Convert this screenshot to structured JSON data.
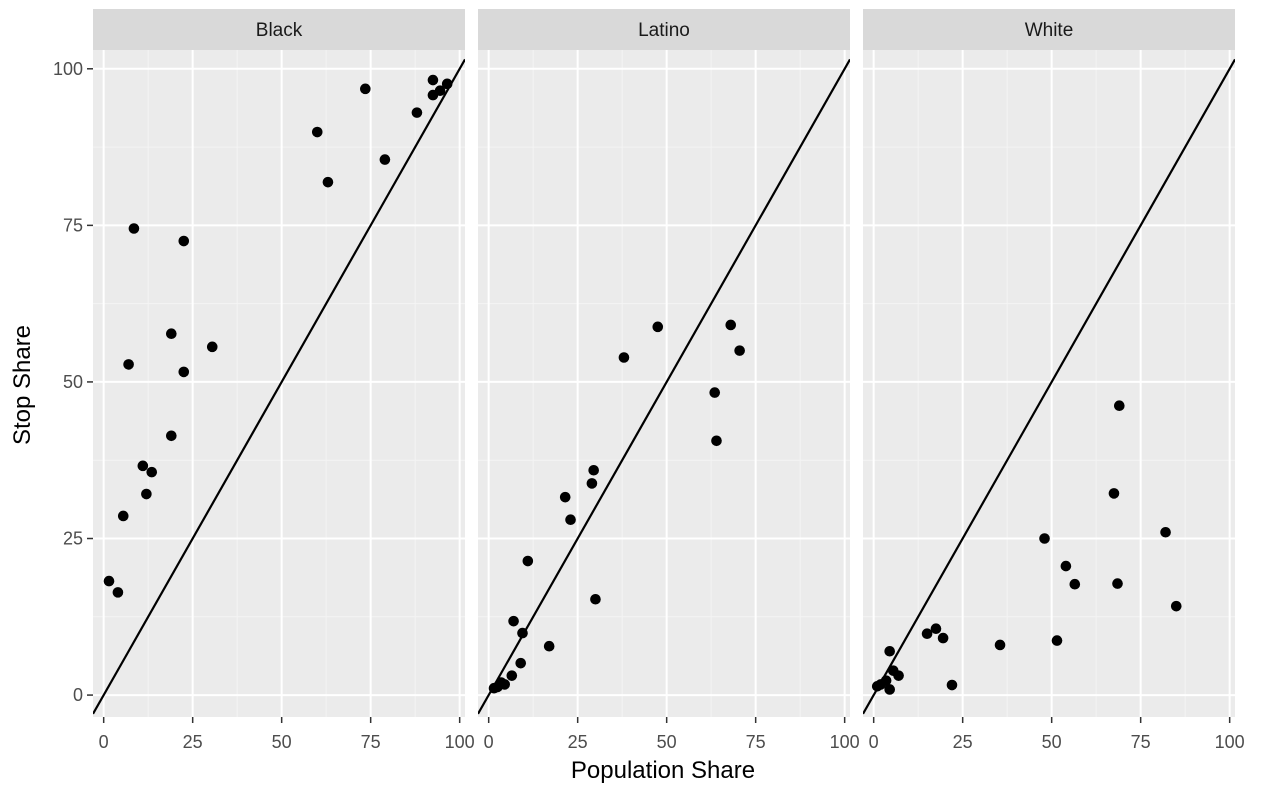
{
  "chart_data": {
    "type": "scatter",
    "xlabel": "Population Share",
    "ylabel": "Stop Share",
    "xlim": [
      -3,
      101.5
    ],
    "ylim": [
      -3.5,
      103
    ],
    "x_ticks": [
      0,
      25,
      50,
      75,
      100
    ],
    "y_ticks": [
      0,
      25,
      50,
      75,
      100
    ],
    "reference_line": {
      "slope": 1,
      "intercept": 0
    },
    "grid": true,
    "panels": [
      {
        "label": "Black",
        "points": [
          {
            "x": 1.5,
            "y": 18.2
          },
          {
            "x": 4,
            "y": 16.4
          },
          {
            "x": 5.5,
            "y": 28.6
          },
          {
            "x": 7,
            "y": 52.8
          },
          {
            "x": 8.5,
            "y": 74.5
          },
          {
            "x": 11,
            "y": 36.6
          },
          {
            "x": 12,
            "y": 32.1
          },
          {
            "x": 13.5,
            "y": 35.6
          },
          {
            "x": 19,
            "y": 57.7
          },
          {
            "x": 19,
            "y": 41.4
          },
          {
            "x": 22.5,
            "y": 72.5
          },
          {
            "x": 22.5,
            "y": 51.6
          },
          {
            "x": 30.5,
            "y": 55.6
          },
          {
            "x": 60,
            "y": 89.9
          },
          {
            "x": 63,
            "y": 81.9
          },
          {
            "x": 73.5,
            "y": 96.8
          },
          {
            "x": 79,
            "y": 85.5
          },
          {
            "x": 88,
            "y": 93
          },
          {
            "x": 92.5,
            "y": 98.2
          },
          {
            "x": 92.5,
            "y": 95.8
          },
          {
            "x": 94.5,
            "y": 96.5
          },
          {
            "x": 96.5,
            "y": 97.6
          }
        ]
      },
      {
        "label": "Latino",
        "points": [
          {
            "x": 1.5,
            "y": 1.1
          },
          {
            "x": 2.5,
            "y": 1.3
          },
          {
            "x": 3.5,
            "y": 2
          },
          {
            "x": 4.5,
            "y": 1.7
          },
          {
            "x": 6.5,
            "y": 3.1
          },
          {
            "x": 7,
            "y": 11.8
          },
          {
            "x": 9,
            "y": 5.1
          },
          {
            "x": 9.5,
            "y": 9.9
          },
          {
            "x": 11,
            "y": 21.4
          },
          {
            "x": 17,
            "y": 7.8
          },
          {
            "x": 21.5,
            "y": 31.6
          },
          {
            "x": 23,
            "y": 28
          },
          {
            "x": 29,
            "y": 33.8
          },
          {
            "x": 29.5,
            "y": 35.9
          },
          {
            "x": 30,
            "y": 15.3
          },
          {
            "x": 38,
            "y": 53.9
          },
          {
            "x": 47.5,
            "y": 58.8
          },
          {
            "x": 63.5,
            "y": 48.3
          },
          {
            "x": 64,
            "y": 40.6
          },
          {
            "x": 68,
            "y": 59.1
          },
          {
            "x": 70.5,
            "y": 55
          }
        ]
      },
      {
        "label": "White",
        "points": [
          {
            "x": 1,
            "y": 1.4
          },
          {
            "x": 2,
            "y": 1.7
          },
          {
            "x": 3.5,
            "y": 2.3
          },
          {
            "x": 4.5,
            "y": 0.9
          },
          {
            "x": 4.5,
            "y": 7
          },
          {
            "x": 5.5,
            "y": 3.9
          },
          {
            "x": 7,
            "y": 3.1
          },
          {
            "x": 15,
            "y": 9.8
          },
          {
            "x": 17.5,
            "y": 10.6
          },
          {
            "x": 19.5,
            "y": 9.1
          },
          {
            "x": 22,
            "y": 1.6
          },
          {
            "x": 35.5,
            "y": 8
          },
          {
            "x": 48,
            "y": 25
          },
          {
            "x": 51.5,
            "y": 8.7
          },
          {
            "x": 54,
            "y": 20.6
          },
          {
            "x": 56.5,
            "y": 17.7
          },
          {
            "x": 67.5,
            "y": 32.2
          },
          {
            "x": 68.5,
            "y": 17.8
          },
          {
            "x": 69,
            "y": 46.2
          },
          {
            "x": 82,
            "y": 26
          },
          {
            "x": 85,
            "y": 14.2
          }
        ]
      }
    ]
  }
}
